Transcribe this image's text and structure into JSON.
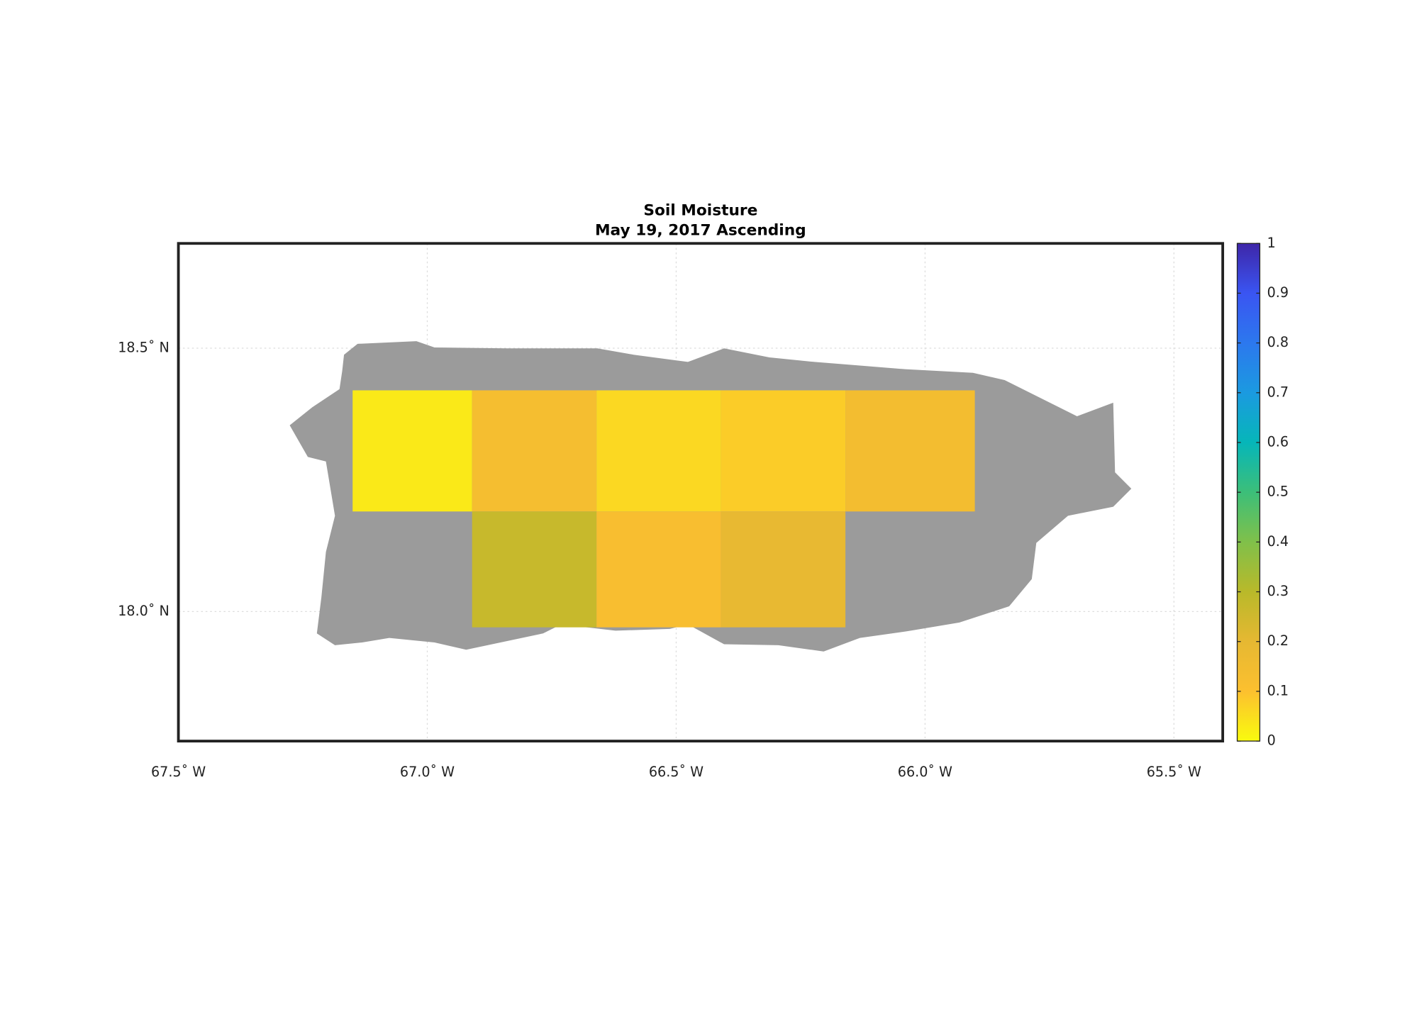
{
  "chart_data": {
    "type": "gridmap",
    "title": "Soil Moisture",
    "subtitle": "May 19, 2017 Ascending",
    "xlim": [
      -67.5,
      -65.402
    ],
    "ylim": [
      17.754,
      18.699
    ],
    "xticks": [
      {
        "value": -67.5,
        "label": "67.5˚ W"
      },
      {
        "value": -67.0,
        "label": "67.0˚ W"
      },
      {
        "value": -66.5,
        "label": "66.5˚ W"
      },
      {
        "value": -66.0,
        "label": "66.0˚ W"
      },
      {
        "value": -65.5,
        "label": "65.5˚ W"
      }
    ],
    "yticks": [
      {
        "value": 18.0,
        "label": "18.0˚ N"
      },
      {
        "value": 18.5,
        "label": "18.5˚ N"
      }
    ],
    "grid": true,
    "x_edges": [
      -67.15,
      -66.91,
      -66.66,
      -66.41,
      -66.16,
      -65.9
    ],
    "y_edges": [
      18.42,
      18.19,
      17.97
    ],
    "values": [
      [
        0.03,
        0.13,
        0.06,
        0.08,
        0.14
      ],
      [
        null,
        0.27,
        0.12,
        0.19,
        null
      ]
    ],
    "land_color": "#9b9b9b",
    "colorbar": {
      "lim": [
        0,
        1
      ],
      "ticks": [
        0,
        0.1,
        0.2,
        0.3,
        0.4,
        0.5,
        0.6,
        0.7,
        0.8,
        0.9,
        1
      ],
      "colormap": [
        "#f9fb0e",
        "#fcc02f",
        "#e6b832",
        "#b9b92a",
        "#80c04a",
        "#3cbf79",
        "#06b6b9",
        "#1b9ae0",
        "#2c78ee",
        "#3a55f2",
        "#3e26a8"
      ]
    }
  }
}
